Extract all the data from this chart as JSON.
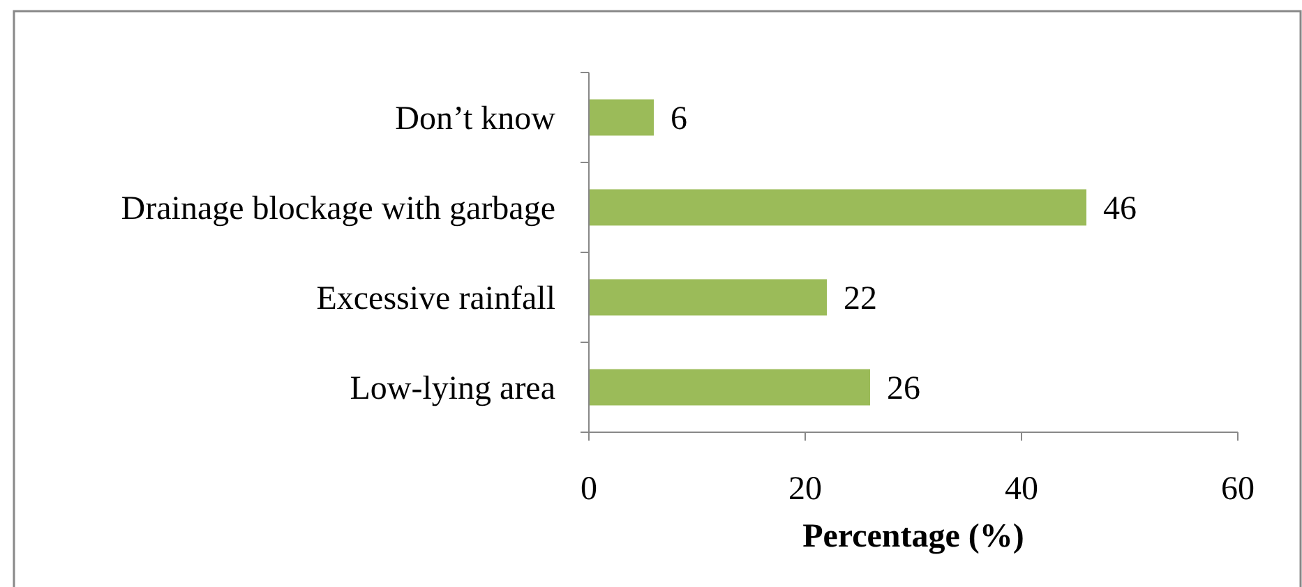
{
  "chart_data": {
    "type": "bar",
    "orientation": "horizontal",
    "xlabel": "Percentage (%)",
    "categories": [
      "Don’t know",
      "Drainage blockage with garbage",
      "Excessive rainfall",
      "Low-lying area"
    ],
    "values": [
      6,
      46,
      22,
      26
    ],
    "color": "#9bbb59",
    "xlim": [
      0,
      60
    ],
    "xticks": [
      0,
      20,
      40,
      60
    ],
    "data_labels": true,
    "grid": false
  }
}
